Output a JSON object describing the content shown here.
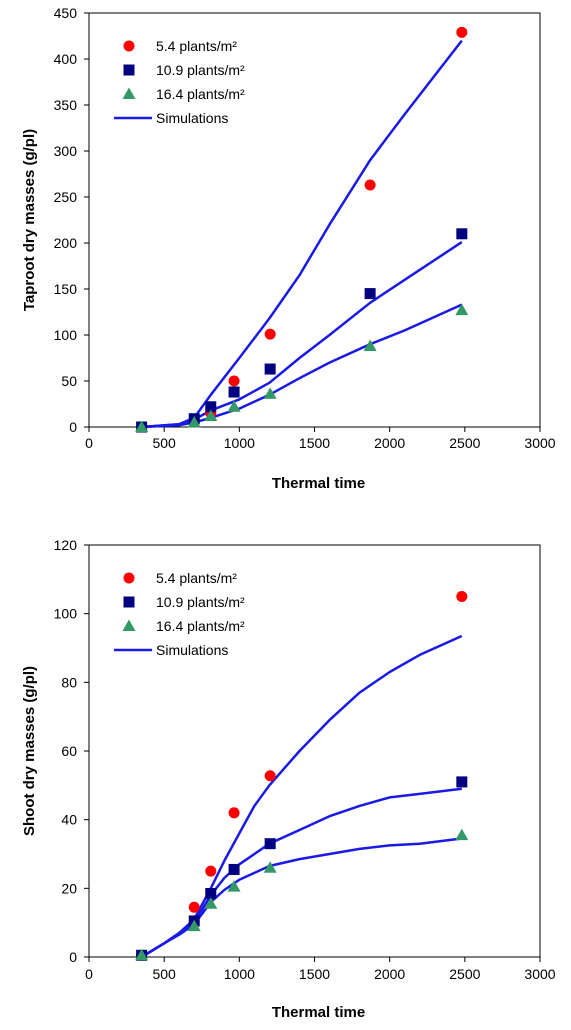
{
  "colors": {
    "series_5_4": "#ff0000",
    "series_10_9": "#000080",
    "series_16_4": "#339966",
    "simulation": "#1a1ae6"
  },
  "chart_data": [
    {
      "type": "scatter",
      "xlabel": "Thermal time",
      "ylabel": "Taproot dry masses (g/pl)",
      "xlim": [
        0,
        3000
      ],
      "ylim": [
        0,
        450
      ],
      "xticks": [
        0,
        500,
        1000,
        1500,
        2000,
        2500,
        3000
      ],
      "yticks": [
        0,
        50,
        100,
        150,
        200,
        250,
        300,
        350,
        400,
        450
      ],
      "legend_position": "top-left",
      "series": [
        {
          "name": "5.4 plants/m²",
          "marker": "circle",
          "x": [
            350,
            700,
            810,
            965,
            1205,
            1870,
            2480
          ],
          "y": [
            0,
            8,
            15,
            50,
            101,
            263,
            429
          ]
        },
        {
          "name": "10.9 plants/m²",
          "marker": "square",
          "x": [
            350,
            700,
            810,
            965,
            1205,
            1870,
            2480
          ],
          "y": [
            0,
            9,
            22,
            38,
            63,
            145,
            210
          ]
        },
        {
          "name": "16.4 plants/m²",
          "marker": "triangle",
          "x": [
            350,
            700,
            810,
            965,
            1205,
            1870,
            2480
          ],
          "y": [
            0,
            5,
            12,
            22,
            36,
            88,
            127
          ]
        }
      ],
      "simulations": {
        "name": "Simulations",
        "curves": [
          {
            "x": [
              350,
              600,
              700,
              810,
              1000,
              1200,
              1400,
              1600,
              1870,
              2100,
              2480
            ],
            "y": [
              0,
              3,
              10,
              35,
              75,
              118,
              165,
              220,
              290,
              340,
              420
            ]
          },
          {
            "x": [
              350,
              600,
              700,
              810,
              1000,
              1200,
              1400,
              1600,
              1870,
              2100,
              2480
            ],
            "y": [
              0,
              3,
              8,
              18,
              30,
              48,
              75,
              100,
              135,
              160,
              201
            ]
          },
          {
            "x": [
              350,
              600,
              700,
              810,
              1000,
              1200,
              1400,
              1600,
              1870,
              2100,
              2480
            ],
            "y": [
              0,
              2,
              5,
              10,
              20,
              35,
              53,
              70,
              90,
              105,
              133
            ]
          }
        ]
      }
    },
    {
      "type": "scatter",
      "xlabel": "Thermal time",
      "ylabel": "Shoot dry masses (g/pl)",
      "xlim": [
        0,
        3000
      ],
      "ylim": [
        0,
        120
      ],
      "xticks": [
        0,
        500,
        1000,
        1500,
        2000,
        2500,
        3000
      ],
      "yticks": [
        0,
        20,
        40,
        60,
        80,
        100,
        120
      ],
      "legend_position": "top-left",
      "series": [
        {
          "name": "5.4 plants/m²",
          "marker": "circle",
          "x": [
            350,
            700,
            810,
            965,
            1205,
            2480
          ],
          "y": [
            0.5,
            14.5,
            25,
            42,
            52.8,
            105
          ]
        },
        {
          "name": "10.9 plants/m²",
          "marker": "square",
          "x": [
            350,
            700,
            810,
            965,
            1205,
            2480
          ],
          "y": [
            0.5,
            10.5,
            18.5,
            25.5,
            33,
            51
          ]
        },
        {
          "name": "16.4 plants/m²",
          "marker": "triangle",
          "x": [
            350,
            700,
            810,
            965,
            1205,
            2480
          ],
          "y": [
            0.5,
            9,
            15.5,
            20.5,
            26,
            35.5
          ]
        }
      ],
      "simulations": {
        "name": "Simulations",
        "curves": [
          {
            "x": [
              350,
              500,
              600,
              700,
              810,
              900,
              1000,
              1100,
              1200,
              1400,
              1600,
              1800,
              2000,
              2200,
              2480
            ],
            "y": [
              0,
              4,
              7,
              11,
              20,
              28,
              36,
              44,
              50,
              60,
              69,
              77,
              83,
              88,
              93.5
            ]
          },
          {
            "x": [
              350,
              500,
              600,
              700,
              810,
              900,
              1000,
              1100,
              1200,
              1400,
              1600,
              1800,
              2000,
              2200,
              2480
            ],
            "y": [
              0,
              4,
              7,
              10,
              18,
              23,
              27,
              30,
              33,
              37,
              41,
              44,
              46.5,
              47.5,
              49
            ]
          },
          {
            "x": [
              350,
              500,
              600,
              700,
              810,
              900,
              1000,
              1100,
              1200,
              1400,
              1600,
              1800,
              2000,
              2200,
              2480
            ],
            "y": [
              0,
              4,
              6.5,
              9.5,
              16,
              19.5,
              22.5,
              24.5,
              26.5,
              28.5,
              30,
              31.5,
              32.5,
              33,
              34.5
            ]
          }
        ]
      }
    }
  ]
}
